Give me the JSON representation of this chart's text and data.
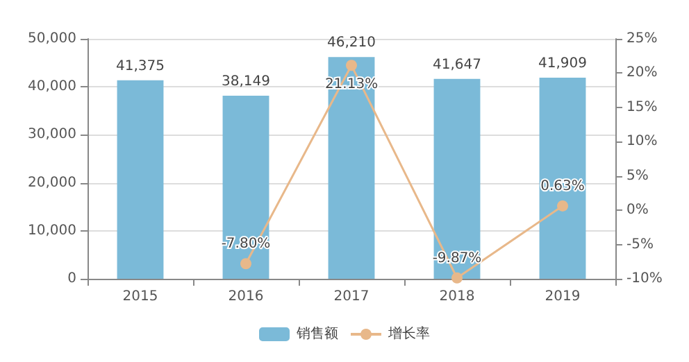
{
  "chart_data": {
    "type": "bar",
    "categories": [
      "2015",
      "2016",
      "2017",
      "2018",
      "2019"
    ],
    "series": [
      {
        "name": "销售额",
        "color": "#7bbad8",
        "values": [
          41375,
          38149,
          46210,
          41647,
          41909
        ],
        "value_labels": [
          "41,375",
          "38,149",
          "46,210",
          "41,647",
          "41,909"
        ]
      },
      {
        "name": "增长率",
        "type": "line",
        "axis": "y2",
        "color": "#e8b88a",
        "values": [
          null,
          -7.8,
          21.13,
          -9.87,
          0.63
        ],
        "value_labels": [
          null,
          "-7.80%",
          "21.13%",
          "-9.87%",
          "0.63%"
        ]
      }
    ],
    "ylim": [
      0,
      50000
    ],
    "yticks": [
      {
        "value": 0,
        "label": "0"
      },
      {
        "value": 10000,
        "label": "10,000"
      },
      {
        "value": 20000,
        "label": "20,000"
      },
      {
        "value": 30000,
        "label": "30,000"
      },
      {
        "value": 40000,
        "label": "40,000"
      },
      {
        "value": 50000,
        "label": "50,000"
      }
    ],
    "y2lim": [
      -10,
      25
    ],
    "y2ticks": [
      {
        "value": -10,
        "label": "-10%"
      },
      {
        "value": -5,
        "label": "-5%"
      },
      {
        "value": 0,
        "label": "0%"
      },
      {
        "value": 5,
        "label": "5%"
      },
      {
        "value": 10,
        "label": "10%"
      },
      {
        "value": 15,
        "label": "15%"
      },
      {
        "value": 20,
        "label": "20%"
      },
      {
        "value": 25,
        "label": "25%"
      }
    ],
    "grid": "y",
    "legend": "bottom",
    "marker": "circle"
  }
}
